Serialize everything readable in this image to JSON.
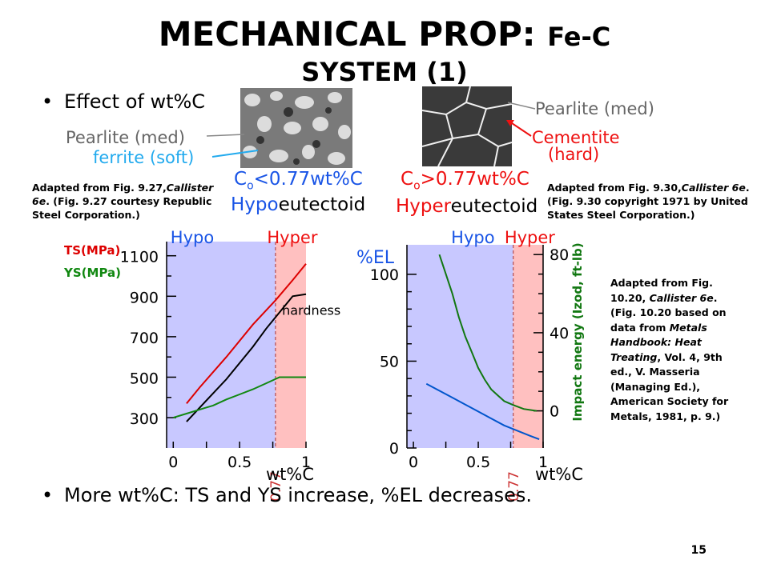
{
  "title": {
    "main": "MECHANICAL PROP:",
    "small": "Fe-C",
    "line2": "SYSTEM (1)"
  },
  "bullets": {
    "first": "Effect of wt%C",
    "second": "More wt%C:  TS and YS increase, %EL decreases."
  },
  "microstructure": {
    "left": {
      "pearlite_label": "Pearlite (med)",
      "ferrite_label": "ferrite (soft)",
      "composition_prefix": "C",
      "composition_sub": "o",
      "composition_rest": "<0.77wt%C",
      "type_prefix": "Hypo",
      "type_suffix": "eutectoid"
    },
    "right": {
      "pearlite_label": "Pearlite (med)",
      "cementite_label": "Cementite",
      "cementite_sub": "(hard)",
      "composition_prefix": "C",
      "composition_sub": "o",
      "composition_rest": ">0.77wt%C",
      "type_prefix": "Hyper",
      "type_suffix": "eutectoid"
    }
  },
  "notes": {
    "left": {
      "lead": "Adapted from Fig. 9.27,",
      "book": "Callister 6e",
      "rest": ".  (Fig. 9.27 courtesy Republic Steel Corporation.)"
    },
    "right": {
      "lead": "Adapted from Fig. 9.30,",
      "book": "Callister 6e",
      "rest": ".  (Fig. 9.30 copyright 1971 by United States Steel Corporation.)"
    },
    "chart": {
      "lead": "Adapted from Fig. 10.20, ",
      "book": "Callister 6e",
      "mid": ". (Fig. 10.20 based on data from ",
      "handbook": "Metals Handbook: Heat Treating",
      "rest": ", Vol. 4, 9th ed., V. Masseria (Managing Ed.), American Society for Metals, 1981, p. 9.)"
    }
  },
  "page_number": "15",
  "colors": {
    "hypo": "#c8c8ff",
    "hyper": "#ffc0c0",
    "blue_text": "#1a55e6",
    "red_text": "#ee1111",
    "cyan_text": "#22aaee",
    "ts": "#dd0000",
    "ys": "#118811",
    "hardness": "#000000",
    "el": "#0055cc",
    "impact": "#117711",
    "divider": "#aa3333",
    "eutectoid_label": "#cc3333"
  },
  "chart_data": [
    {
      "type": "line",
      "title": "",
      "region_labels": [
        "Hypo",
        "Hyper"
      ],
      "eutectoid_label": "0.77",
      "eutectoid_x": 0.77,
      "xlabel": "wt%C",
      "xlim": [
        -0.05,
        1.0
      ],
      "ylim": [
        150,
        1170
      ],
      "x_ticks": [
        "0",
        "0.5",
        "1"
      ],
      "x_tick_values": [
        0,
        0.5,
        1
      ],
      "y_ticks": [
        "300",
        "500",
        "700",
        "900",
        "1100"
      ],
      "y_tick_values": [
        300,
        500,
        700,
        900,
        1100
      ],
      "y_axis_labels": [
        "TS(MPa)",
        "YS(MPa)"
      ],
      "series": [
        {
          "name": "TS(MPa)",
          "x": [
            0.1,
            0.2,
            0.4,
            0.6,
            0.77,
            0.9,
            1.0
          ],
          "y": [
            370,
            450,
            600,
            760,
            880,
            980,
            1060
          ]
        },
        {
          "name": "hardness",
          "x": [
            0.1,
            0.2,
            0.4,
            0.6,
            0.7,
            0.8,
            0.9,
            1.0
          ],
          "y": [
            280,
            350,
            490,
            650,
            740,
            820,
            900,
            910
          ]
        },
        {
          "name": "YS(MPa)",
          "x": [
            0.0,
            0.1,
            0.2,
            0.3,
            0.4,
            0.5,
            0.6,
            0.7,
            0.8,
            0.9,
            1.0
          ],
          "y": [
            300,
            320,
            340,
            360,
            390,
            415,
            440,
            470,
            500,
            500,
            500
          ]
        }
      ]
    },
    {
      "type": "line",
      "title": "",
      "region_labels": [
        "Hypo",
        "Hyper"
      ],
      "eutectoid_label": "0.77",
      "eutectoid_x": 0.77,
      "xlabel": "wt%C",
      "left_ylabel": "%EL",
      "right_ylabel": "Impact energy (Izod, ft-lb)",
      "xlim": [
        -0.05,
        1.0
      ],
      "ylim_left": [
        0,
        117
      ],
      "ylim_right": [
        -19,
        85
      ],
      "x_ticks": [
        "0",
        "0.5",
        "1"
      ],
      "x_tick_values": [
        0,
        0.5,
        1
      ],
      "left_ticks": [
        "0",
        "50",
        "100"
      ],
      "left_tick_values": [
        0,
        50,
        100
      ],
      "right_ticks": [
        "0",
        "40",
        "80"
      ],
      "right_tick_values": [
        0,
        40,
        80
      ],
      "series": [
        {
          "name": "%EL",
          "axis": "left",
          "x": [
            0.1,
            0.2,
            0.3,
            0.4,
            0.5,
            0.6,
            0.7,
            0.8,
            0.9,
            0.97
          ],
          "y": [
            37,
            33,
            29,
            25,
            21,
            17,
            13,
            10,
            7,
            5
          ]
        },
        {
          "name": "Impact energy (Izod, ft-lb)",
          "axis": "right",
          "x": [
            0.2,
            0.25,
            0.3,
            0.35,
            0.4,
            0.45,
            0.5,
            0.55,
            0.6,
            0.65,
            0.7,
            0.77,
            0.85,
            0.95
          ],
          "y": [
            80,
            70,
            60,
            48,
            38,
            30,
            22,
            16,
            11,
            8,
            5,
            3,
            1,
            0
          ]
        }
      ]
    }
  ]
}
